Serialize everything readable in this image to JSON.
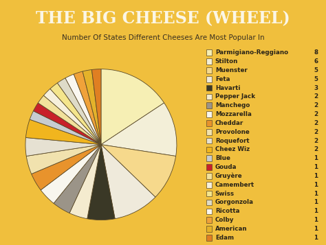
{
  "chart_data": {
    "type": "pie",
    "title": "THE BIG CHEESE (WHEEL)",
    "subtitle": "Number Of States Different Cheeses Are Most Popular In",
    "categories": [
      "Parmigiano-Reggiano",
      "Stilton",
      "Muenster",
      "Feta",
      "Havarti",
      "Pepper Jack",
      "Manchego",
      "Mozzarella",
      "Cheddar",
      "Provolone",
      "Roquefort",
      "Cheez Wiz",
      "Blue",
      "Gouda",
      "Gruyère",
      "Camembert",
      "Swiss",
      "Gorgonzola",
      "Ricotta",
      "Colby",
      "American",
      "Edam"
    ],
    "values": [
      8,
      6,
      5,
      5,
      3,
      2,
      2,
      2,
      2,
      2,
      2,
      2,
      1,
      1,
      1,
      1,
      1,
      1,
      1,
      1,
      1,
      1
    ],
    "colors": [
      "#f6efb4",
      "#f3efd8",
      "#f6d98c",
      "#efeadb",
      "#3a3826",
      "#f4ebcf",
      "#9b9488",
      "#f8f6ee",
      "#e8932c",
      "#f1e2ae",
      "#e6e1d2",
      "#f1b51e",
      "#c7ccd0",
      "#c8202a",
      "#f2e19b",
      "#f6f0dc",
      "#f4e58c",
      "#dedbc8",
      "#faf7f0",
      "#f0a23a",
      "#e4b22a",
      "#e07f22"
    ],
    "data_labels": true
  }
}
